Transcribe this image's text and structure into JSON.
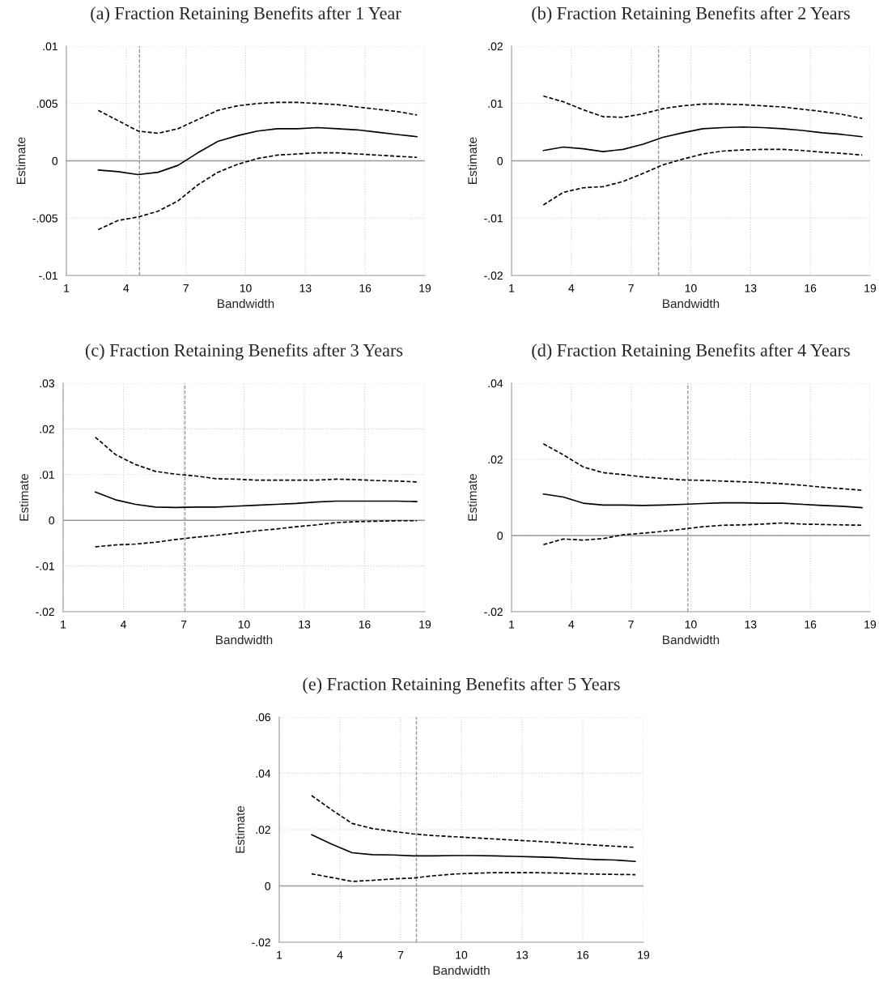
{
  "chart_data": [
    {
      "type": "line",
      "title": "(a) Fraction Retaining Benefits after 1 Year",
      "xlabel": "Bandwidth",
      "ylabel": "Estimate",
      "x": [
        2.6,
        3.6,
        4.6,
        5.6,
        6.6,
        7.6,
        8.6,
        9.6,
        10.6,
        11.6,
        12.6,
        13.6,
        14.6,
        15.6,
        16.6,
        17.6,
        18.6
      ],
      "series": [
        {
          "color": "#000000",
          "line_style": "solid",
          "values": [
            -0.0008,
            -0.00095,
            -0.0012,
            -0.001,
            -0.0004,
            0.0007,
            0.0017,
            0.0022,
            0.0026,
            0.0028,
            0.0028,
            0.0029,
            0.0028,
            0.0027,
            0.0025,
            0.0023,
            0.0021
          ]
        },
        {
          "color": "#000000",
          "line_style": "dashed",
          "values": [
            0.0044,
            0.0035,
            0.0026,
            0.0024,
            0.0028,
            0.0036,
            0.0044,
            0.0048,
            0.005,
            0.0051,
            0.0051,
            0.005,
            0.0049,
            0.0047,
            0.0045,
            0.0043,
            0.004
          ]
        },
        {
          "color": "#000000",
          "line_style": "dashed",
          "values": [
            -0.006,
            -0.0052,
            -0.0049,
            -0.0044,
            -0.0035,
            -0.0021,
            -0.001,
            -0.0003,
            0.0002,
            0.0005,
            0.0006,
            0.0007,
            0.0007,
            0.0006,
            0.0005,
            0.0004,
            0.0003
          ]
        }
      ],
      "xlim": [
        1,
        19
      ],
      "xticks": [
        1,
        4,
        7,
        10,
        13,
        16,
        19
      ],
      "ylim": [
        -0.01,
        0.01
      ],
      "yticks": [
        {
          "value": -0.01,
          "label": "-.01"
        },
        {
          "value": -0.005,
          "label": "-.005"
        },
        0,
        {
          "value": 0.005,
          "label": ".005"
        },
        {
          "value": 0.01,
          "label": ".01"
        }
      ],
      "ref_lines": [
        {
          "axis": "x",
          "value": 4.67,
          "color": "#999999",
          "line_style": "dashed"
        },
        {
          "axis": "y",
          "value": 0,
          "color": "#999999",
          "line_style": "solid"
        }
      ],
      "grid": true
    },
    {
      "type": "line",
      "title": "(b) Fraction Retaining Benefits after 2 Years",
      "xlabel": "Bandwidth",
      "ylabel": "Estimate",
      "x": [
        2.6,
        3.6,
        4.6,
        5.6,
        6.6,
        7.6,
        8.6,
        9.6,
        10.6,
        11.6,
        12.6,
        13.6,
        14.6,
        15.6,
        16.6,
        17.6,
        18.6
      ],
      "series": [
        {
          "color": "#000000",
          "line_style": "solid",
          "values": [
            0.0018,
            0.0024,
            0.0021,
            0.0016,
            0.002,
            0.0029,
            0.0041,
            0.0049,
            0.0056,
            0.0058,
            0.0059,
            0.0058,
            0.0056,
            0.0053,
            0.0049,
            0.0046,
            0.0042
          ]
        },
        {
          "color": "#000000",
          "line_style": "dashed",
          "values": [
            0.0113,
            0.0103,
            0.0089,
            0.0077,
            0.0076,
            0.0082,
            0.0091,
            0.0096,
            0.0099,
            0.0099,
            0.0098,
            0.0096,
            0.0094,
            0.009,
            0.0086,
            0.0081,
            0.0074
          ]
        },
        {
          "color": "#000000",
          "line_style": "dashed",
          "values": [
            -0.0077,
            -0.0055,
            -0.0047,
            -0.0045,
            -0.0036,
            -0.0022,
            -0.0007,
            0.0003,
            0.0012,
            0.0017,
            0.0019,
            0.002,
            0.002,
            0.0018,
            0.0015,
            0.0013,
            0.001
          ]
        }
      ],
      "xlim": [
        1,
        19
      ],
      "xticks": [
        1,
        4,
        7,
        10,
        13,
        16,
        19
      ],
      "ylim": [
        -0.02,
        0.02
      ],
      "yticks": [
        {
          "value": -0.02,
          "label": "-.02"
        },
        {
          "value": -0.01,
          "label": "-.01"
        },
        0,
        {
          "value": 0.01,
          "label": ".01"
        },
        {
          "value": 0.02,
          "label": ".02"
        }
      ],
      "ref_lines": [
        {
          "axis": "x",
          "value": 8.38,
          "color": "#999999",
          "line_style": "dashed"
        },
        {
          "axis": "y",
          "value": 0,
          "color": "#999999",
          "line_style": "solid"
        }
      ],
      "grid": true
    },
    {
      "type": "line",
      "title": "(c) Fraction Retaining Benefits after 3 Years",
      "xlabel": "Bandwidth",
      "ylabel": "Estimate",
      "x": [
        2.6,
        3.6,
        4.6,
        5.6,
        6.6,
        7.6,
        8.6,
        9.6,
        10.6,
        11.6,
        12.6,
        13.6,
        14.6,
        15.6,
        16.6,
        17.6,
        18.6
      ],
      "series": [
        {
          "color": "#000000",
          "line_style": "solid",
          "values": [
            0.0062,
            0.0045,
            0.0035,
            0.0029,
            0.0028,
            0.0029,
            0.0029,
            0.0031,
            0.0033,
            0.0035,
            0.0037,
            0.004,
            0.0042,
            0.0042,
            0.0042,
            0.0042,
            0.0041
          ]
        },
        {
          "color": "#000000",
          "line_style": "dashed",
          "values": [
            0.0182,
            0.0144,
            0.0122,
            0.0107,
            0.0101,
            0.0097,
            0.0091,
            0.009,
            0.0088,
            0.0088,
            0.0088,
            0.0088,
            0.009,
            0.0089,
            0.0087,
            0.0086,
            0.0084
          ]
        },
        {
          "color": "#000000",
          "line_style": "dashed",
          "values": [
            -0.0058,
            -0.0054,
            -0.0052,
            -0.0048,
            -0.0042,
            -0.0037,
            -0.0033,
            -0.0028,
            -0.0023,
            -0.0019,
            -0.0014,
            -0.001,
            -0.0005,
            -0.0003,
            -0.0002,
            -0.0001,
            -0.0001
          ]
        }
      ],
      "xlim": [
        1,
        19
      ],
      "xticks": [
        1,
        4,
        7,
        10,
        13,
        16,
        19
      ],
      "ylim": [
        -0.02,
        0.03
      ],
      "yticks": [
        {
          "value": -0.02,
          "label": "-.02"
        },
        {
          "value": -0.01,
          "label": "-.01"
        },
        0,
        {
          "value": 0.01,
          "label": ".01"
        },
        {
          "value": 0.02,
          "label": ".02"
        },
        {
          "value": 0.03,
          "label": ".03"
        }
      ],
      "ref_lines": [
        {
          "axis": "x",
          "value": 7.06,
          "color": "#999999",
          "line_style": "dashed"
        },
        {
          "axis": "y",
          "value": 0,
          "color": "#999999",
          "line_style": "solid"
        }
      ],
      "grid": true
    },
    {
      "type": "line",
      "title": "(d) Fraction Retaining Benefits after 4 Years",
      "xlabel": "Bandwidth",
      "ylabel": "Estimate",
      "x": [
        2.6,
        3.6,
        4.6,
        5.6,
        6.6,
        7.6,
        8.6,
        9.6,
        10.6,
        11.6,
        12.6,
        13.6,
        14.6,
        15.6,
        16.6,
        17.6,
        18.6
      ],
      "series": [
        {
          "color": "#000000",
          "line_style": "solid",
          "values": [
            0.0109,
            0.0101,
            0.0085,
            0.008,
            0.008,
            0.0079,
            0.008,
            0.0082,
            0.0084,
            0.0086,
            0.0086,
            0.0085,
            0.0085,
            0.0082,
            0.0079,
            0.0077,
            0.0073
          ]
        },
        {
          "color": "#000000",
          "line_style": "dashed",
          "values": [
            0.0241,
            0.0212,
            0.018,
            0.0165,
            0.016,
            0.0154,
            0.015,
            0.0146,
            0.0145,
            0.0143,
            0.0141,
            0.0139,
            0.0136,
            0.0132,
            0.0127,
            0.0123,
            0.0119
          ]
        },
        {
          "color": "#000000",
          "line_style": "dashed",
          "values": [
            -0.0024,
            -0.0009,
            -0.0012,
            -0.0008,
            0.0002,
            0.0006,
            0.0011,
            0.0017,
            0.0023,
            0.0027,
            0.0028,
            0.003,
            0.0033,
            0.003,
            0.0029,
            0.0028,
            0.0027
          ]
        }
      ],
      "xlim": [
        1,
        19
      ],
      "xticks": [
        1,
        4,
        7,
        10,
        13,
        16,
        19
      ],
      "ylim": [
        -0.02,
        0.04
      ],
      "yticks": [
        {
          "value": -0.02,
          "label": "-.02"
        },
        0,
        {
          "value": 0.02,
          "label": ".02"
        },
        {
          "value": 0.04,
          "label": ".04"
        }
      ],
      "ref_lines": [
        {
          "axis": "x",
          "value": 9.85,
          "color": "#999999",
          "line_style": "dashed"
        },
        {
          "axis": "y",
          "value": 0,
          "color": "#999999",
          "line_style": "solid"
        }
      ],
      "grid": true
    },
    {
      "type": "line",
      "title": "(e) Fraction Retaining Benefits after 5 Years",
      "xlabel": "Bandwidth",
      "ylabel": "Estimate",
      "x": [
        2.6,
        3.6,
        4.6,
        5.6,
        6.6,
        7.6,
        8.6,
        9.6,
        10.6,
        11.6,
        12.6,
        13.6,
        14.6,
        15.6,
        16.6,
        17.6,
        18.6
      ],
      "series": [
        {
          "color": "#000000",
          "line_style": "solid",
          "values": [
            0.0182,
            0.0148,
            0.0118,
            0.0111,
            0.011,
            0.0107,
            0.0107,
            0.0108,
            0.0108,
            0.0107,
            0.0105,
            0.0103,
            0.0101,
            0.0097,
            0.0094,
            0.0092,
            0.0087
          ]
        },
        {
          "color": "#000000",
          "line_style": "dashed",
          "values": [
            0.0321,
            0.027,
            0.0222,
            0.0204,
            0.0194,
            0.0185,
            0.0179,
            0.0175,
            0.0171,
            0.0167,
            0.0163,
            0.0159,
            0.0155,
            0.015,
            0.0145,
            0.0141,
            0.0137
          ]
        },
        {
          "color": "#000000",
          "line_style": "dashed",
          "values": [
            0.0043,
            0.003,
            0.0016,
            0.002,
            0.0025,
            0.0028,
            0.0036,
            0.0042,
            0.0045,
            0.0047,
            0.0047,
            0.0047,
            0.0046,
            0.0044,
            0.0042,
            0.0041,
            0.004
          ]
        }
      ],
      "xlim": [
        1,
        19
      ],
      "xticks": [
        1,
        4,
        7,
        10,
        13,
        16,
        19
      ],
      "ylim": [
        -0.02,
        0.06
      ],
      "yticks": [
        {
          "value": -0.02,
          "label": "-.02"
        },
        0,
        {
          "value": 0.02,
          "label": ".02"
        },
        {
          "value": 0.04,
          "label": ".04"
        },
        {
          "value": 0.06,
          "label": ".06"
        }
      ],
      "ref_lines": [
        {
          "axis": "x",
          "value": 7.78,
          "color": "#999999",
          "line_style": "dashed"
        },
        {
          "axis": "y",
          "value": 0,
          "color": "#999999",
          "line_style": "solid"
        }
      ],
      "grid": true
    }
  ]
}
